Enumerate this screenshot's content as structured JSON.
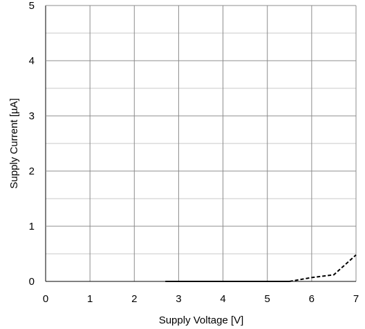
{
  "chart_data": {
    "type": "line",
    "xlabel": "Supply Voltage [V]",
    "ylabel": "Supply Current [µA]",
    "xlim": [
      0,
      7
    ],
    "ylim": [
      0,
      5
    ],
    "x_ticks": [
      "0",
      "1",
      "2",
      "3",
      "4",
      "5",
      "6",
      "7"
    ],
    "y_ticks": [
      "0",
      "1",
      "2",
      "3",
      "4",
      "5"
    ],
    "grid": true,
    "grid_minor_y": 0.5,
    "series": [
      {
        "style": "solid",
        "color": "#000000",
        "x": [
          2.7,
          5.5
        ],
        "y": [
          0,
          0
        ]
      },
      {
        "style": "dashed",
        "color": "#000000",
        "x": [
          5.5,
          6.0,
          6.5,
          7.0
        ],
        "y": [
          0,
          0.07,
          0.12,
          0.48
        ]
      }
    ]
  }
}
